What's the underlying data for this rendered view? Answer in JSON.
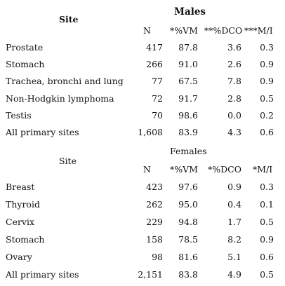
{
  "males": {
    "site_header": "Site",
    "group_title": "Males",
    "columns": [
      "N",
      "*%VM",
      "**%DCO",
      "***M/I"
    ],
    "rows": [
      {
        "site": "Prostate",
        "n": "417",
        "vm": "87.8",
        "dco": "3.6",
        "mi": "0.3"
      },
      {
        "site": "Stomach",
        "n": "266",
        "vm": "91.0",
        "dco": "2.6",
        "mi": "0.9"
      },
      {
        "site": "Trachea, bronchi and lung",
        "n": "77",
        "vm": "67.5",
        "dco": "7.8",
        "mi": "0.9"
      },
      {
        "site": "Non-Hodgkin lymphoma",
        "n": "72",
        "vm": "91.7",
        "dco": "2.8",
        "mi": "0.5"
      },
      {
        "site": "Testis",
        "n": "70",
        "vm": "98.6",
        "dco": "0.0",
        "mi": "0.2"
      },
      {
        "site": "All primary sites",
        "n": "1,608",
        "vm": "83.9",
        "dco": "4.3",
        "mi": "0.6"
      }
    ]
  },
  "females": {
    "site_header": "Site",
    "group_title": "Females",
    "columns": [
      "N",
      "*%VM",
      "*%DCO",
      "*M/I"
    ],
    "rows": [
      {
        "site": "Breast",
        "n": "423",
        "vm": "97.6",
        "dco": "0.9",
        "mi": "0.3"
      },
      {
        "site": "Thyroid",
        "n": "262",
        "vm": "95.0",
        "dco": "0.4",
        "mi": "0.1"
      },
      {
        "site": "Cervix",
        "n": "229",
        "vm": "94.8",
        "dco": "1.7",
        "mi": "0.5"
      },
      {
        "site": "Stomach",
        "n": "158",
        "vm": "78.5",
        "dco": "8.2",
        "mi": "0.9"
      },
      {
        "site": "Ovary",
        "n": "98",
        "vm": "81.6",
        "dco": "5.1",
        "mi": "0.6"
      },
      {
        "site": "All primary sites",
        "n": "2,151",
        "vm": "83.8",
        "dco": "4.9",
        "mi": "0.5"
      }
    ]
  }
}
